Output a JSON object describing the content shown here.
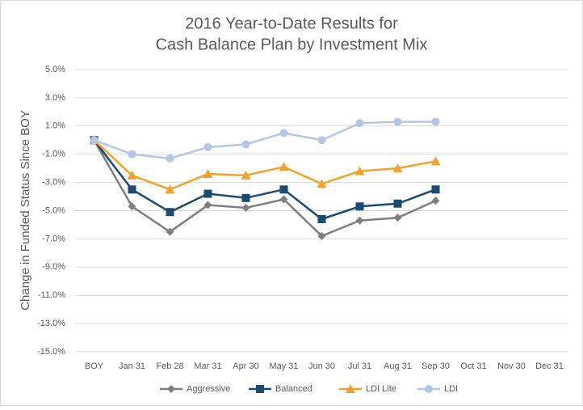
{
  "chart_data": {
    "type": "line",
    "title": [
      "2016 Year-to-Date Results for",
      "Cash Balance Plan by Investment Mix"
    ],
    "y_label": "Change in Funded Status Since BOY",
    "categories": [
      "BOY",
      "Jan 31",
      "Feb 28",
      "Mar 31",
      "Apr 30",
      "May 31",
      "Jun 30",
      "Jul 31",
      "Aug 31",
      "Sep 30",
      "Oct 31",
      "Nov 30",
      "Dec 31"
    ],
    "series": [
      {
        "name": "Aggressive",
        "color": "#7f7f7f",
        "marker": "diamond",
        "values": [
          0,
          -4.7,
          -6.5,
          -4.6,
          -4.8,
          -4.2,
          -6.8,
          -5.7,
          -5.5,
          -4.3,
          null,
          null,
          null
        ]
      },
      {
        "name": "Balanced",
        "color": "#1b4a72",
        "marker": "square",
        "values": [
          0,
          -3.5,
          -5.1,
          -3.8,
          -4.1,
          -3.5,
          -5.6,
          -4.7,
          -4.5,
          -3.5,
          null,
          null,
          null
        ]
      },
      {
        "name": "LDI Lite",
        "color": "#f0a22e",
        "marker": "triangle",
        "values": [
          0,
          -2.5,
          -3.5,
          -2.4,
          -2.5,
          -1.9,
          -3.1,
          -2.2,
          -2.0,
          -1.5,
          null,
          null,
          null
        ]
      },
      {
        "name": "LDI",
        "color": "#b4c6e4",
        "marker": "circle",
        "values": [
          0,
          -1.0,
          -1.3,
          -0.5,
          -0.3,
          0.5,
          0.0,
          1.2,
          1.3,
          1.3,
          null,
          null,
          null
        ]
      }
    ],
    "ylim": [
      -15,
      5
    ],
    "yticks": [
      {
        "value": 5,
        "label": "5.0%"
      },
      {
        "value": 3,
        "label": "3.0%"
      },
      {
        "value": 1,
        "label": "1.0%"
      },
      {
        "value": -1,
        "label": "-1.0%"
      },
      {
        "value": -3,
        "label": "-3.0%"
      },
      {
        "value": -5,
        "label": "-5.0%"
      },
      {
        "value": -7,
        "label": "-7.0%"
      },
      {
        "value": -9,
        "label": "-9.0%"
      },
      {
        "value": -11,
        "label": "-11.0%"
      },
      {
        "value": -13,
        "label": "-13.0%"
      },
      {
        "value": -15,
        "label": "-15.0%"
      }
    ],
    "grid": true,
    "legend": "bottom"
  }
}
